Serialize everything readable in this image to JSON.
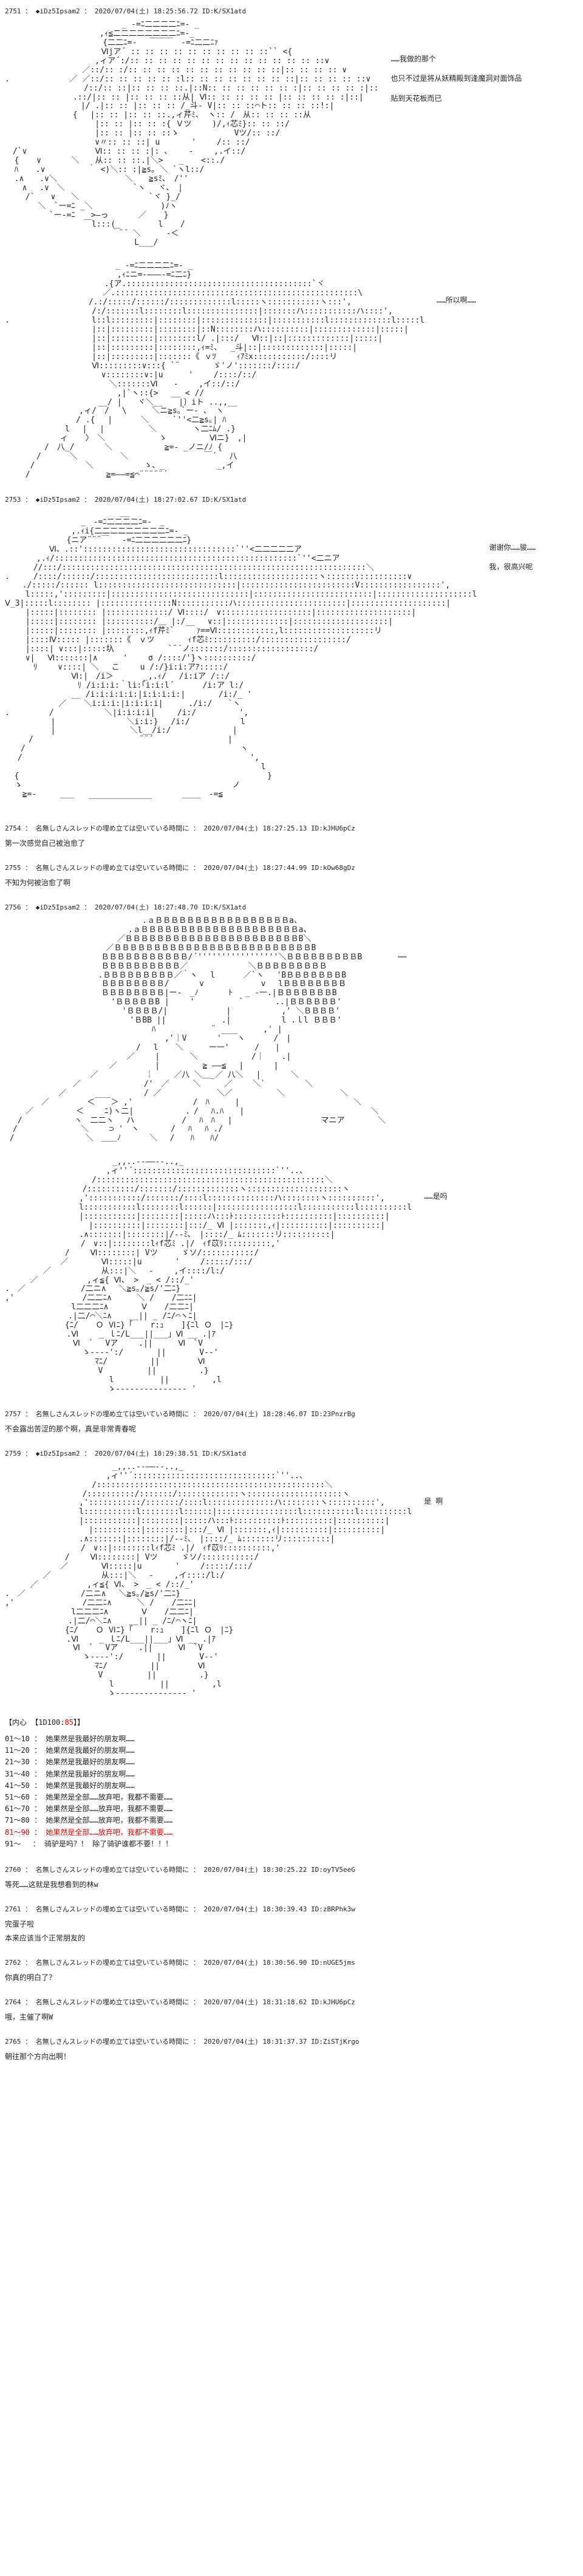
{
  "posts": [
    {
      "id": "2751",
      "header": "2751 ： ◆iDz5Ipsam2 ： 2020/07/04(土) 18:25:56.72 ID:K/SX1atd",
      "aa": "　　　　　　　　　　　 　 　 _ -=ﾆ二二二二ﾆ=- _\n　　　　　　　　　　　　,ｨ≦二二二二二二二二ﾆ=-_\n　　　　　　　 　 　 　 {二二ﾆ=-　 ￣￣￣　-=ﾆ二二ﾆｧ\n　　　　　　　　　　 　 Ⅵjア´ :: :: :: :: :: :: :: :: :: ::`` <{\n　　　　　　 　 　 　 ,ィア´:/:: :: :: :: :: :: :: :: :: :: :: :: :: ::∨\n　　　　　　 　 　 ／::/:: :/:: :: :: :: :: :: :: :: :: :: ::|:: :: :: :: ∨\n.　　　　　　　 ／ ／::/:: :: :: :: :: :l:: :: :: :: :: :: :: ::|:: :: :: :: ::∨\n　　　 　 　 　 　 /::/:: ::|:: :: :: ::.|::N:: :: :: :: :: :: :|:: :: :: :: :|::\n　　　　　　　　 .::/|:: :: |:: :: :: ::从| Ⅵ:: :: :: :: :: |:: :: :: :: :|::|\n　 　 　 　 　 　 |/ .|:: :: |:: :: :: /_斗‐ V|:: :: ::⌒ト:: :: :: ::!:|\n　　　　　　　　 {　 |:: :: |:: :: ::.,ィ芹ﾐ、 ヽ:: /　从:: :: :: ::从\n　　　　　　 　 　 　 |:: :: |:: :: :{ Ｖツ　　 )/,ｨ芯ﾐ}:: :: ::/\n　　　　　　 　 　 　 |:: :: |:: :: ::ゝ 　 　 　 　 Vツ/:: ::/\n　　　　　　 　 　 　 ∨〃:: :: ::| u　　　　'　　 /:: ::/\n　/`∨ 　 　 　 　 　 Ⅵ:: :: :: :|: 、　　 -　　 ,.イ::/\n  { 　 ∨ 　 　 ＼　　从:: :: ::.|＼>　　_ 　 <::./\n  ﾊ 　 .∨ 　 　 　 ｀ <)＼:: :|≧s｡ ＼ `ヽl::/\n  .∧　　.∨＼ 　 　 　 　 　 ＼　　≧sﾐ､　/''\n 　 ∧ 　.∨　＼ 　 　 　 　 　 `ヽ　 ヾ､　|\n　 　/`　　∨　　＼　　　　　 　 　 `ヾ }_/\n 　　　 ＼　`ー=ﾆ _＼ 　 　 　 　 　 )ﾉヽ\n　　　　　 `ー-=ﾆ　　>―っ 　 　 ／ 　 }\n　　　　　　　　　　￣l:::(_　 　 　 l 　 /\n 　 　 　 　 　 　 　 　 ｀¨´ ＼　 　 -＜\n　　　　　　　　　　　 　 　 　 L___/",
      "side": [
        "……我做的那个",
        "也只不过是将从妖精殿到逢魔洞对面饰品",
        "贴到天花板而已"
      ]
    },
    {
      "id": "2751b",
      "header": "",
      "aa": "　　　　　　　　　　　　　　_ -=ﾆ二二二二ﾆ=- _\n　　　　 　 　 　 　 　 　 ,ｨﾆニ=-―――-=ﾆ二ﾆ}\n　　　　　　　　　　　　 .{ア.:::::::::::::::::::::::::::::::::::::::`ヾ\n　　　　　　　 　 　 　 ／.:::::::::::::::::::::::::::::::::::::::::::::::::::\\\n　　　　　　　　　　 /.:/:::::/::::::/:::::::::::::l:::::ヽ:::::::::::ヽ:::',\n　　　　 　 　 　 　 /:/:::::::l::::::::l:::::::::::::::|:::::::ハ:::::::::::ハ::::',\n.　　　　　 　 　 　 l::l:::::::::|::::::::|::::::::::::::|:::::::::::l:::::::::::::l:::::l\n　　　　 　 　 　 　 |::|:::::::::|::::::::|::N::::::::ハ::::::::::|:::::::::::::|:::::|\n　　　　 　 　 　 　 |::|:::::::::|::::::::l/ .|:::/　 Ⅵ::|::|:::::::::::::|:::::|\n　　　　 　 　 　 　 |::|:::::::::|::::::::,ｨ=ﾐ、　 _斗|::|:::::::::::::|:::::|\n　　　　 　 　 　 　 |::|:::::::::|:::::::《 ｖﾂ　 　ｨｱﾐx:::::::::::/::::リ\n　　　　 　 　 　 　 Ⅵ:::::::::∨:::{ `¨　 　　 ゞ'ノ':::::::/::::/\n　　 　 　 　 　 　 　 ∨::::::::∨:|u　 　 '　　 /::::/::/\n　　 　 　 　 　 　 　 　＼:::::::Ⅵ　　-　　 ,イ::/::/\n　　　　 　 　 　 　 　 　 ,|`ヽ::{>　 __ < //\n　　　　　　　　 　 　 __/ |　　ヾ＼__　　|〕iト ..,,__\n　　　　 　 　 　 ,ィ/　/　 \\　 　 ＼ニ≧s｡`ー- 、 ヽ\n　　 　 　 　 　 / .{　 |　　　 ＼　　　`''<二≧s｡| ﾊ\n　　　　　　　 l　 |　 |　　　　　 ＼　　　　 ヽ二ﾆﾑ/ .}\n　　　　　　　ィ 　 〉　＼　　　 　 　 ゝ 　 　 　 Ⅵニ}　,|\n　　　　　/　八_/ 　 　 ＼　　　　　　 ≧=- _ノニ/ﾉ {\n　　　　/　　　 ＼ 　 　 　 ＼　 　 　 　 　 　 ￣´　 八\n 　 　/　 　 　 　 ＼　 　 　 　 ゝ、_　　　　　　 _,イ\n　　 / 　 　 　 　 　　 ≧=――=≦⌒¨¨¨¨¨´",
      "side": [
        "……所以啊……"
      ]
    },
    {
      "id": "2753",
      "header": "2753 ： ◆iDz5Ipsam2 ： 2020/07/04(土) 18:27:02.67 ID:K/SX1atd",
      "aa": "　　　　　　 　 　 　 　 　 __\n　　　　　　　　　 _　-=ﾆ二二二二ﾆ=-　_\n　　　 　 　 　 ,.ｨi{二二二二二二二二二ﾆ=- _\n　　　 　 　 　{ニア¨¨¨￣　 -=ﾆ二二二二二二ﾆ}\n　　　　　 Ⅵ、.::'::::::::::::::::::::::::::::::::`''<二二二二二ア\n　　　　,.ｨ/:::::::::::::::::::::::::::::::::::::::::::::::::::`''<二ニア\n　　　 //:::/::::::::::::::::::::::::::::::::::::::::::::::::::::::::::::::::＼\n.　　　/::::/::::::/::::::::::::::::::::::::::l::::::::::::::::::::ヽ:::::::::::::::::∨\n 　 ./:::::/:::::: l:::::::::::::::::::::::::::::|::::::::::::::::::::::::V:::::::::::::::::',\n　　 l:::::,':::::::::|:::::::::::::::::::::::::::::|:::::::::::::::::::::::::|::::::::::::::::::::l\nⅤ_3|:::::l:::::::: |:::::::::::::::N:::::::::::ハ:::::::::::::::::::::::|::::::::::::::::::::|\n　　 |:::::|:::::::: |:::::::::::::/ Ⅵ::::/　∨:::::::::::::::::::|::::::::::::::::::::|\n　　 |:::::|:::::::: |::::::::::/＿ |:/__　 ∨::|:::::::::::::|::::::::::::::::::::|\n　　 |:::::|:::::::: |::::::::,ｨf芹ﾐ`  　 ｧ==Ⅵ::::::::::::,l:::::::::::::::::::リ\n　　 |::::Ⅳ::::: |:::::::《　ｖツ　　　  ｨf芯ﾐ::::::::::/::::::::::::::::::/\n　　 |::::| ∨:::|:::::圦　　　 　 　 `¨´ノ:::::::/::::::::::::::::::/\n　　 ∨| 　Ⅵ:::::::|∧　 　 '　 　σ /::::/'}ヽ::::::::::/\n　　　 ﾘ　　 ∨::::| ＼　 こ　　 u /:/}i:i:アｱ:::::/\n　　　 　 　 　 Ⅵ:|　/i＞ 　 　 _,.ｨ/　 /i:iア /::/\n　　　　　　　 　 ﾘ /i:i:i:｀li:｢i:i:l´　　　 /i:ア l:/\n　　　 　 　 　 __ /i:i:i:i:i:|i:i:i:i:|　 　　 /i:/_ '\n　　　 　 　 ／ 　 ＼i:i:i:|i:i:i:i|　 　 ./i:/　　`ヽ\n.　　　　　/　 　 　 　 ＼|i:i:i:i| 　  /i:/ 　 　 　 ',\n　　 　 　 |　　 　 　 　 　 ＼i:i:} 　/i:/　 　 　 　 l\n　　 　 　 |　　　　 　 　 　 ＼l__/i:/　　　　 　 　 |\n　　　/ 　 　 　 　 　 　 　 　 ¨¨´　　　　 　 　 　 |\n　　/　 　 　 　 　 　 　 　 　 　 　 　 　 　 　 　 　 ヽ\n 　/　 　 　 　 　 　 　 　 　 　 　 　 　 　 　 　 　 　 ',\n　　　 　 　 　 　 　 　 　 　 　 　 　 　 　 　 　 　 　 　 l\n  {　　 　 　 　 　 　 　 　 　 　 　 　 　 　 　 　 　 　 　 }\n  ゝ　　　　　　　　　　　　　　　　　　　　　　　　　　 ノ\n 　 ≧=-　　　___　　　　　　　　　　　　　 ____　-=≦\n　　　　　　　　　　 ￣￣￣￣￣￣￣￣",
      "side": [
        "谢谢你……骏……",
        "我，很高兴呢"
      ]
    },
    {
      "id": "2754",
      "header": "2754 ： 名無しさんスレッドの埋め立ては空いている時間に ： 2020/07/04(土) 18:27:25.13 ID:kJHU6pCz",
      "text": [
        "第一次感觉自己被治愈了"
      ]
    },
    {
      "id": "2755",
      "header": "2755 ： 名無しさんスレッドの埋め立ては空いている時間に ： 2020/07/04(土) 18:27:44.99 ID:kOw68gDz",
      "text": [
        "不知为何被治愈了啊"
      ]
    },
    {
      "id": "2756",
      "header": "2756 ： ◆iDz5Ipsam2 ： 2020/07/04(土) 18:27:48.70 ID:K/SX1atd",
      "aa": "　　　　　　　　　　　　 　 　 　 .ａＢＢＢＢＢＢＢＢＢＢＢＢＢＢＢＢＢa、\n　　　　　　　　　　　　　　　 .ａＢＢＢＢＢＢＢＢＢＢＢＢＢＢＢＢＢＢＢＢa、\n　　　　　　　　　　　　 　 ／ＢＢＢＢＢＢＢＢＢＢＢＢＢＢＢＢＢＢＢＢＢＢB＼\n　　　　　　　　　 　 　 ／ＢＢＢＢＢＢＢＢＢＢＢＢＢＢＢＢＢＢＢＢＢＢＢＢＢB\n　　　　　　　　　　 　 ＢＢＢＢＢＢＢＢＢＢＢ/´'''''''''''''''''＼ＢＢＢＢＢＢＢＢＢB\n　　 　 　 　 　 　 　 ＢＢＢＢＢＢＢＢＢＢ／　　　　　　　 ＼ＢＢＢＢＢＢＢＢＢ\n 　 　 　 　 　 　 　 .ＢＢＢＢＢＢＢＢＢ／｀ヽ　 l　　　 ／`ヽ　 'BＢＢＢＢＢＢＢB\n　　 　 　 　 　 　 　 ＢＢＢＢＢＢＢＢ/ 　 　 v　　　　　 　 v　 lＢＢＢＢＢＢＢＢ\n　　 　 　 　 　 　 　 ＢＢＢＢＢＢＢＢ|ー-　_ﾉ 　 　 ﾄ　 _ -一.|ＢＢＢＢＢＢＢB\n 　 　 　 　 　 　 　 　 'ＢＢＢＢＢB |　　 '　　　　　 `　　　　..|ＢＢＢＢＢＢ'\n　　　 　 　 　 　 　 　 　 'ＢＢＢＢ/|　 　　 　 　 |　 　 　 　 ,' ＼ＢＢＢＢ'\n　　　　　　　　　　　　 　 　 'ＢBB || 　 　 　 　 .|　 　 　 　 l .ｌl ＢＢＢ'\n　　　　　　　　　　　　　　　　　　 ﾊ 　 　 　 　 ¨　　　　　　,' |\n　　 　 　 　 　 　 　 　 　 　 　 　 ,'｜V 　 　 '￣￣ヽ　　　 /　|\n　　　　　　　　 　 　 　 　 　 /　 l 　 ＼　 　 ー一'　 　 /　　|\n　　　  　 　 　 　 　 　 　 ／　　 | 　 　 ＼　　　 　 　 /｜ 　 .|\n　　　 　 　 　 　 　 　 ／　 　 　 | 　 　 　 ≧ ――≦　 | 　 　 |\n　　　　　　　 　 　 ／　　　　　　｜　　 ／八 ＼＿_／ 八＼　 | 　 　 ＼\n　　　　　　　　 ／　　　　　　　　/'　／　　　＼　　　／　　 ＼`　　　　　＼\n　　　 　 　 ／　　　　　　 　 　 / ／ 　 　 　 　 ＼／　　　　　 ＼ 　 　 　 　 ＼\n　　　　 ／　 　 　 ＜￣￣＞ ,'　　　　　　　 /　ﾊ　 　 |　 　 　 　 　 　 　 　 　 ＼\n　　 ／ 　 　 　 ＜　　 ﾆ)ヽ二|　　　　　　 ．/　 ﾊ.ﾊ　　|　 　 　 　 　 　 　 　 　 　 ＼\n　 /　　　　　　 ヽ　二二ヽ　 ハ　　　　　　/　 ﾊ　ﾊ　 |　 　 　 　 　 　 　 マニア　 　 　＼\n　/　　　　　　　　＼　　 ⊃ '　ヽ　　　　/　 ﾊ　 ﾊ ./　　　　　　　　　　　　　　　　　　\n /　　　　　　　　　＼　＿＿ﾉ　　　 ＼　 /　　ﾊ　　ﾊ/",
      "side": [
        "……"
      ]
    },
    {
      "id": "2756b",
      "header": "",
      "aa": "　　　　　 　 　 　 　 　 _,,..--――--..,_\n　 　 　 　 　 　 　 　 ,ィ''´::::::::::::::::::::::::::::::`''..、\n　　　　 　 　 　 　 /::::::::::::::::::::::::::::::::::::::::::::::::＼\n　　　　　 　 　 　/::::::::::/:::::::/:::::::::::::ヽ::::::::::::::::::::ヽ\n　　　　 　 　 　 ,':::::::::::/:::::::/::::l::::::::::::::ハ::::::::ヽ::::::::::',\n　　　　 　 　 　 l:::::::::::l::::::::l::::::|:::::::::::::::::l:::::::::::l::::::::::l\n　　　　 　 　 　 |:::::::::::|::::::::|:::::ハ:::ﾄ::::::::::ﾄ::::::::::|::::::::::|\n　　 　 　 　 　 　 |::::::::::|::::::::|:::/_ Ⅵ |:::::::,ｨ|::::::::::|::::::::::|\n　　　　 　 　 　 .∧:::::::|::::::::|/-‐ﾐ､　|::::/_ ﾑ:::::::リ::::::::::|\n　 　 　 　 　 　 /　∨::|::::::::lｨf芯ﾐ .|/　ｨf苡ﾘ::::::::::,'\n　　　　　　　 /　　 Ⅵ::::::::| Vツ　　　ゞソ/:::::::::::/\n 　 　 　 　 ／　　 　 Ⅵ:::::|u　　 　 '　　 /:::::/:::/\n　 　 　 ／　 　 　 　 从:::|＼　 -　　 ,イ::::/l:/\n　 　 ／　　　　 　 ,ィ≦{ Ⅵ、 >　_ < /::/_'\n.　／ 　 　 　 　 /二ニ∧　 ＼≧s｡/≧s/'二ﾆ}\n,' 　 　 　 　 　 /二二ﾆ∧　 　 ＼ / 　 /二ﾆﾆ|\n　　　 　 　 　 l二二二ﾆ∧　　 　 Ⅴ 　 /二二ﾆ|\n　 　 　 　 　 .|二/⌒＼ﾆ∧ 　 __|| _ /ﾆ/⌒ヽﾆ|\n　　　　　　 　{ﾆ/ 　 Ｏ Ⅵﾆ}「 　 r:ｭ 　 ]{ﾆl Ｏ　|ﾆ}\n　　　　 　 　 .Ⅵ　　 _ ｌﾆ/L___||___」Ⅵ __ .|ｱ\n　　　　　　　 　Ⅵ　´　 Vア　　 .||　 　 Ⅵ　`V\n　　　　　 　 　 　ゝ----':/　　 　 ||　　 　 V--'\n　　　　　　 　 　 　 ﾏﾆ/ 　 　 　 || 　 　 　Ⅵ\n　　　　　　　　 　 　 V　　　　　 || 　 　 　 .}\n　　 　 　 　 　 　 　 　l　　 　 　 || 　 　 　 ,l\n　　　　　 　 　 　 　 　ゝ--------------- '",
      "side": [
        "……是吗"
      ]
    },
    {
      "id": "2757",
      "header": "2757 ： 名無しさんスレッドの埋め立ては空いている時間に ： 2020/07/04(土) 18:28:46.07 ID:23PnzrBg",
      "text": [
        "不会露出苦涩的那个啊，真是非常青春呢"
      ]
    },
    {
      "id": "2759",
      "header": "2759 ： ◆iDz5Ipsam2 ： 2020/07/04(土) 18:29:38.51 ID:K/SX1atd",
      "aa": "　　　　　 　 　 　 　 　 _,,..--――--..,_\n　 　 　 　 　 　 　 　 ,ィ''´::::::::::::::::::::::::::::::`''..、\n　　　　 　 　 　 　 /::::::::::::::::::::::::::::::::::::::::::::::::＼\n　　　　　 　 　 　/::::::::::/:::::::/:::::::::::::ヽ::::::::::::::::::::ヽ\n　　　　 　 　 　 ,':::::::::::/:::::::/::::l::::::::::::::ハ::::::::ヽ::::::::::',\n　　　　 　 　 　 l:::::::::::l::::::::l::::::|:::::::::::::::::l:::::::::::l::::::::::l\n　　　　 　 　 　 |:::::::::::|::::::::|:::::ハ:::ﾄ::::::::::ﾄ::::::::::|::::::::::|\n　　 　 　 　 　 　 |::::::::::|::::::::|:::/_ Ⅵ |:::::::,ｨ|::::::::::|::::::::::|\n　　　　 　 　 　 .∧:::::::|::::::::|/-‐ﾐ､　|::::/_ ﾑ:::::::リ::::::::::|\n　 　 　 　 　 　 /　∨::|::::::::lｨf芯ﾐ .|/　ｨf苡ﾘ::::::::::,'\n　　　　　　　 /　　 Ⅵ::::::::| Vツ　　　ゞソ/:::::::::::/\n 　 　 　 　 ／　　 　 Ⅵ:::::|u　　 　 '　　 /:::::/:::/\n　 　 　 ／　 　 　 　 从:::|＼　 -　　 ,イ::::/l:/\n　 　 ／　　　　 　 ,ィ≦{ Ⅵ、 >　_ < /::/_'\n.　／ 　 　 　 　 /二ニ∧　 ＼≧s｡/≧s/'二ﾆ}\n,' 　 　 　 　 　 /二二ﾆ∧　 　 ＼ / 　 /二ﾆﾆ|\n　　　 　 　 　 l二二二ﾆ∧　　 　 Ⅴ 　 /二二ﾆ|\n　 　 　 　 　 .|二/⌒＼ﾆ∧ 　 __|| _ /ﾆ/⌒ヽﾆ|\n　　　　　　 　{ﾆ/ 　 Ｏ Ⅵﾆ}「 　 r:ｭ 　 ]{ﾆl Ｏ　|ﾆ}\n　　　　 　 　 .Ⅵ　　 _ ｌﾆ/L___||___」Ⅵ __ .|ｱ\n　　　　　　　 　Ⅵ　´　 Vア　　 .||　 　 Ⅵ　`V\n　　　　　 　 　 　ゝ----':/　　 　 ||　　 　 V--'\n　　　　　　 　 　 　 ﾏﾆ/ 　 　 　 || 　 　 　Ⅵ\n　　　　　　　　 　 　 V　　　　　 || 　 　 　 .}\n　　 　 　 　 　 　 　 　l　　 　 　 || 　 　 　 ,l\n　　　　　 　 　 　 　 　ゝ--------------- '",
      "side": [
        "是 啊"
      ],
      "dice": {
        "title": "【内心 【1D100:85】】",
        "ranges": [
          {
            "r": "01～10 ： 她果然是我最好的朋友啊……",
            "red": false
          },
          {
            "r": "11～20 ： 她果然是我最好的朋友啊……",
            "red": false
          },
          {
            "r": "21～30 ： 她果然是我最好的朋友啊……",
            "red": false
          },
          {
            "r": "31～40 ： 她果然是我最好的朋友啊……",
            "red": false
          },
          {
            "r": "41～50 ： 她果然是我最好的朋友啊……",
            "red": false
          },
          {
            "r": "51～60 ： 她果然是全部……放弃吧，我都不需要……",
            "red": false
          },
          {
            "r": "61～70 ： 她果然是全部……放弃吧，我都不需要……",
            "red": false
          },
          {
            "r": "71～80 ： 她果然是全部……放弃吧，我都不需要……",
            "red": false
          },
          {
            "r": "81～90 ： 她果然是全部……放弃吧，我都不需要……",
            "red": true
          },
          {
            "r": "91～　 ： 骑驴是吗？！  除了骑驴谁都不要！！！",
            "red": false
          }
        ]
      }
    },
    {
      "id": "2760",
      "header": "2760 ： 名無しさんスレッドの埋め立ては空いている時間に ： 2020/07/04(土) 18:30:25.22 ID:oyTV5eeG",
      "text": [
        "等死……这就是我想看到的林w"
      ]
    },
    {
      "id": "2761",
      "header": "2761 ： 名無しさんスレッドの埋め立ては空いている時間に ： 2020/07/04(土) 18:30:39.43 ID:zBRPhk3w",
      "text": [
        "完蛋子啦",
        "本来应该当个正常朋友的"
      ]
    },
    {
      "id": "2762",
      "header": "2762 ： 名無しさんスレッドの埋め立ては空いている時間に ： 2020/07/04(土) 18:30:56.90 ID:nUGE5jms",
      "text": [
        "你真的明白了？"
      ]
    },
    {
      "id": "2764",
      "header": "2764 ： 名無しさんスレッドの埋め立ては空いている時間に ： 2020/07/04(土) 18:31:18.62 ID:kJHU6pCz",
      "text": [
        "哦，主催了啊W"
      ]
    },
    {
      "id": "2765",
      "header": "2765 ： 名無しさんスレッドの埋め立ては空いている時間に ： 2020/07/04(土) 18:31:37.37 ID:ZiSTjKrgo",
      "text": [
        "朝往那个方向出啊！"
      ]
    }
  ]
}
